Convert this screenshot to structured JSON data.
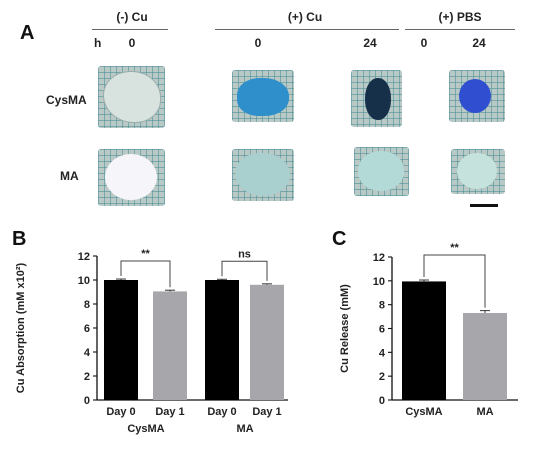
{
  "panel_a": {
    "letter": "A",
    "group_headers": [
      "(-) Cu",
      "(+) Cu",
      "(+) PBS"
    ],
    "h_label": "h",
    "time_labels": [
      "0",
      "0",
      "24",
      "0",
      "24"
    ],
    "row_labels": [
      "CysMA",
      "MA"
    ],
    "sample_colors": {
      "cysma_neg_0": "#d8e2de",
      "cysma_cu_0": "#2f8fca",
      "cysma_cu_24": "#17304a",
      "cysma_pbs_24": "#2f4fd0",
      "ma_neg_0": "#f6f5fa",
      "ma_cu_0": "#a9cfcf",
      "ma_cu_24": "#b4dad8",
      "ma_pbs_24": "#c6e2dc"
    }
  },
  "chart_data": [
    {
      "type": "bar",
      "panel_letter": "B",
      "categories": [
        "Day 0",
        "Day 1",
        "Day 0",
        "Day 1"
      ],
      "groups": [
        "CysMA",
        "MA"
      ],
      "values": [
        10.0,
        9.05,
        10.0,
        9.6
      ],
      "errors": [
        0.08,
        0.1,
        0.06,
        0.08
      ],
      "bar_colors": [
        "#000000",
        "#a6a6ab",
        "#000000",
        "#a6a6ab"
      ],
      "ylabel": "Cu Absorption (mM x10²)",
      "ylim": [
        0,
        12
      ],
      "yticks": [
        0,
        2,
        4,
        6,
        8,
        10,
        12
      ],
      "significance": [
        {
          "label": "**",
          "between": [
            0,
            1
          ]
        },
        {
          "label": "ns",
          "between": [
            2,
            3
          ]
        }
      ]
    },
    {
      "type": "bar",
      "panel_letter": "C",
      "categories": [
        "CysMA",
        "MA"
      ],
      "values": [
        9.95,
        7.3
      ],
      "errors": [
        0.12,
        0.2
      ],
      "bar_colors": [
        "#000000",
        "#a6a6ab"
      ],
      "ylabel": "Cu Release (mM)",
      "ylim": [
        0,
        12
      ],
      "yticks": [
        0,
        2,
        4,
        6,
        8,
        10,
        12
      ],
      "significance": [
        {
          "label": "**",
          "between": [
            0,
            1
          ]
        }
      ]
    }
  ]
}
